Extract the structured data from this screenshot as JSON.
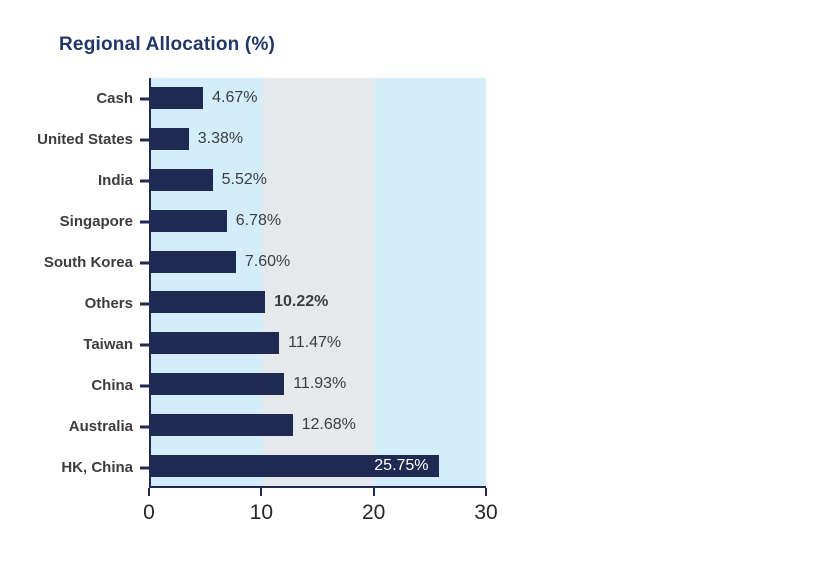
{
  "chart_data": {
    "type": "bar",
    "orientation": "horizontal",
    "title": "Regional Allocation (%)",
    "categories": [
      "Cash",
      "United States",
      "India",
      "Singapore",
      "South Korea",
      "Others",
      "Taiwan",
      "China",
      "Australia",
      "HK, China"
    ],
    "values": [
      4.67,
      3.38,
      5.52,
      6.78,
      7.6,
      10.22,
      11.47,
      11.93,
      12.68,
      25.75
    ],
    "value_labels": [
      "4.67%",
      "3.38%",
      "5.52%",
      "6.78%",
      "7.60%",
      "10.22%",
      "11.47%",
      "11.93%",
      "12.68%",
      "25.75%"
    ],
    "bold_value_labels": [
      false,
      false,
      false,
      false,
      false,
      true,
      false,
      false,
      false,
      false
    ],
    "value_label_inside": [
      false,
      false,
      false,
      false,
      false,
      false,
      false,
      false,
      false,
      true
    ],
    "xlabel": "",
    "ylabel": "",
    "xlim": [
      0,
      30
    ],
    "x_tick_labels": [
      "0",
      "10",
      "20",
      "30"
    ],
    "x_tick_values": [
      0,
      10,
      20,
      30
    ],
    "grid": false,
    "legend": "none",
    "bands": [
      {
        "from": 0,
        "to": 10,
        "color": "#d3edfb"
      },
      {
        "from": 10,
        "to": 20,
        "color": "#e5e9eb"
      },
      {
        "from": 20,
        "to": 30,
        "color": "#d3edfb"
      }
    ],
    "colors": {
      "bar": "#1e2a52",
      "axis": "#1e2a52",
      "title": "#21376a",
      "category_label": "#3d3d3d",
      "value_label": "#3d3d3d",
      "value_label_inside": "#ffffff",
      "x_tick_label": "#262626"
    }
  }
}
